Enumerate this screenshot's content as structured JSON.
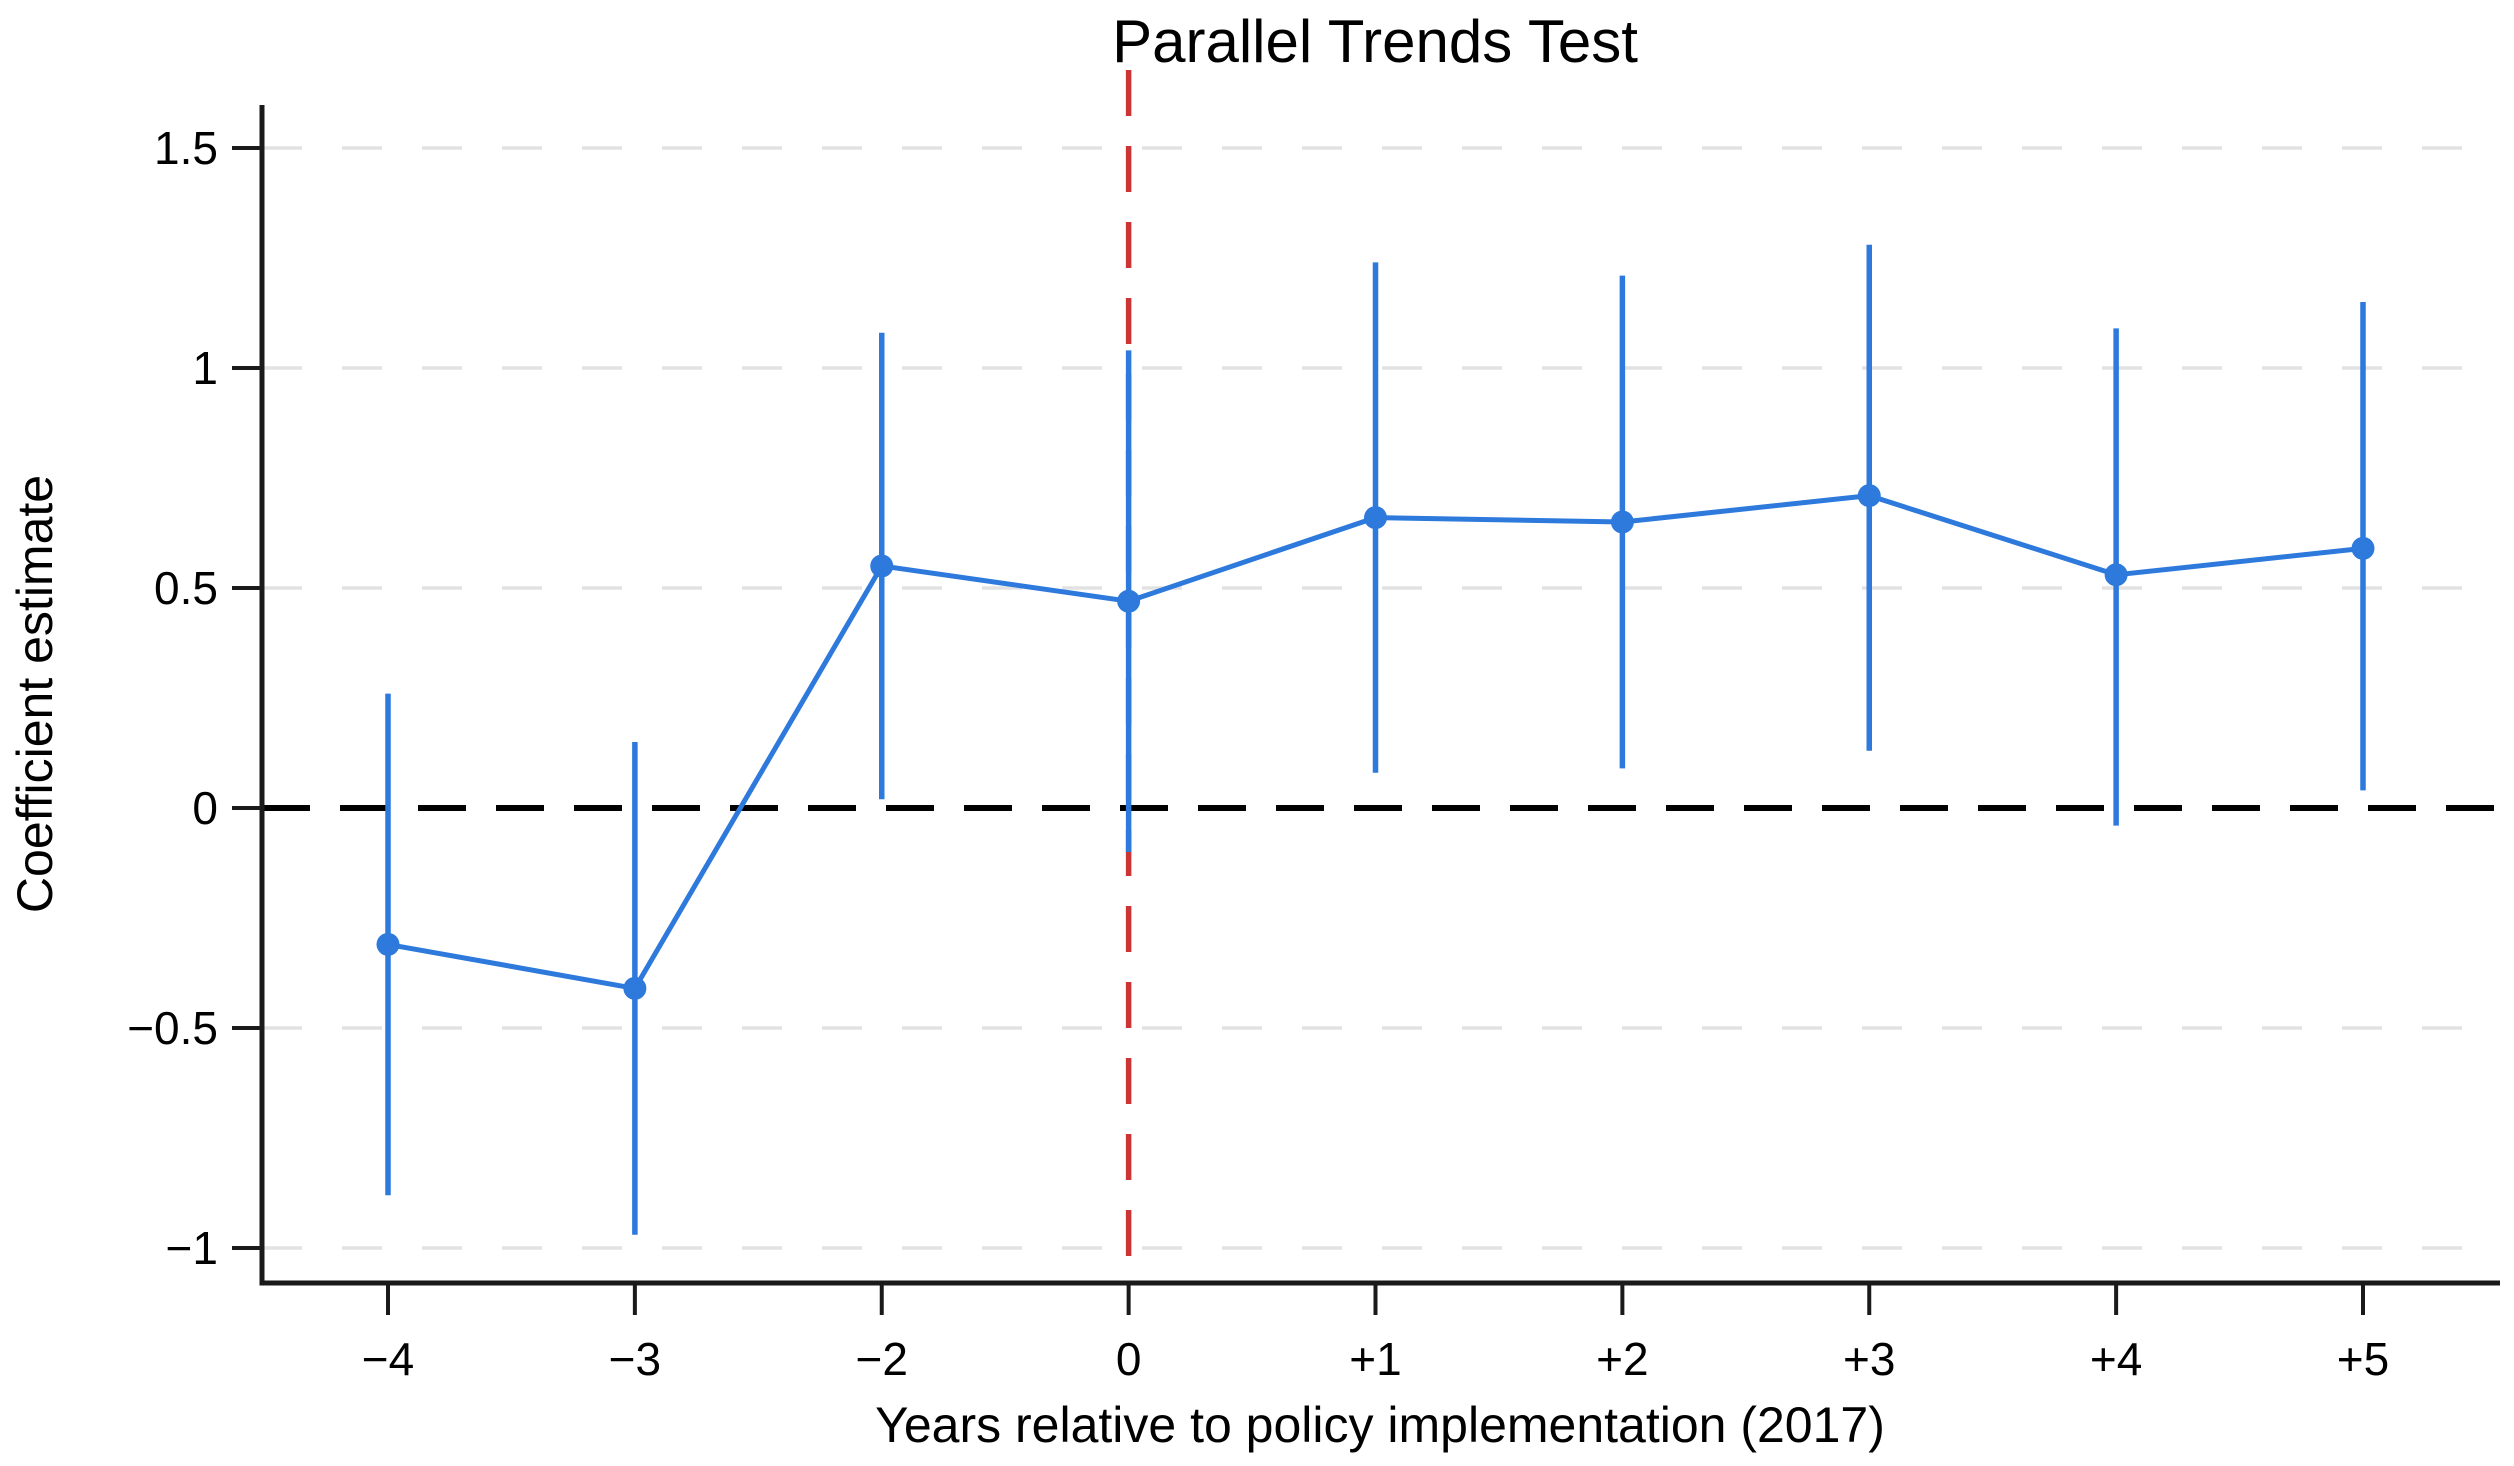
{
  "chart_data": {
    "type": "line",
    "title": "Parallel Trends Test",
    "xlabel": "Years relative to policy implementation (2017)",
    "ylabel": "Coefficient estimate",
    "categories": [
      "−4",
      "−3",
      "−2",
      "0",
      "+1",
      "+2",
      "+3",
      "+4",
      "+5"
    ],
    "series": [
      {
        "name": "coefficient-estimate-with-ci",
        "values": [
          -0.31,
          -0.41,
          0.55,
          0.47,
          0.66,
          0.65,
          0.71,
          0.53,
          0.59
        ],
        "ci_low": [
          -0.88,
          -0.97,
          0.02,
          -0.1,
          0.08,
          0.09,
          0.13,
          -0.04,
          0.04
        ],
        "ci_high": [
          0.26,
          0.15,
          1.08,
          1.04,
          1.24,
          1.21,
          1.28,
          1.09,
          1.15
        ]
      }
    ],
    "y_ticks": {
      "values": [
        1.5,
        1,
        0.5,
        0,
        -0.5,
        -1
      ],
      "labels": [
        "1.5",
        "1",
        "0.5",
        "0",
        "−0.5",
        "−1"
      ]
    },
    "ylim": [
      -1.08,
      1.6
    ],
    "grid": "horizontal-dashed",
    "legend_position": "none",
    "reference_lines": {
      "zero_line": {
        "axis": "y",
        "value": 0,
        "style": "dashed"
      },
      "policy_line": {
        "axis": "x",
        "category": "0",
        "style": "dashed"
      }
    },
    "colors": {
      "series": "#2d79dc",
      "policy_line": "#cb3434",
      "zero_line": "#000000",
      "gridline": "#e2e2e2",
      "axis": "#1a1a1a"
    }
  }
}
